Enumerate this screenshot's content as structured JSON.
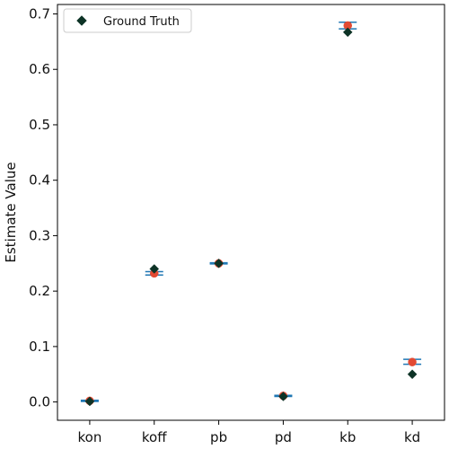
{
  "chart_data": {
    "type": "scatter",
    "title": "",
    "xlabel": "",
    "ylabel": "Estimate Value",
    "categories": [
      "kon",
      "koff",
      "pb",
      "pd",
      "kb",
      "kd"
    ],
    "ylim": [
      -0.033,
      0.717
    ],
    "yticks": [
      0.0,
      0.1,
      0.2,
      0.3,
      0.4,
      0.5,
      0.6,
      0.7
    ],
    "ytick_labels": [
      "0.0",
      "0.1",
      "0.2",
      "0.3",
      "0.4",
      "0.5",
      "0.6",
      "0.7"
    ],
    "grid": false,
    "legend": {
      "placement": "top-left",
      "entries": [
        "Ground Truth"
      ]
    },
    "series": [
      {
        "name": "Ground Truth",
        "marker": "diamond",
        "color": "#0d3326",
        "values": [
          0.001,
          0.24,
          0.25,
          0.01,
          0.667,
          0.05
        ]
      },
      {
        "marker": "circle",
        "color": "#e34a33",
        "values": [
          0.002,
          0.232,
          0.25,
          0.011,
          0.679,
          0.072
        ]
      }
    ],
    "error_bars": {
      "color": "#1f77b4",
      "low": [
        0.001,
        0.229,
        0.249,
        0.01,
        0.673,
        0.068
      ],
      "high": [
        0.003,
        0.235,
        0.251,
        0.012,
        0.685,
        0.077
      ]
    }
  }
}
